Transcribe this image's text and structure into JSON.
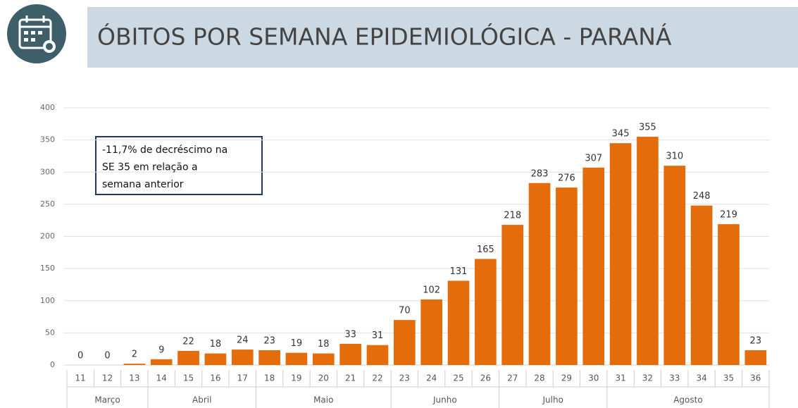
{
  "chart_data": {
    "type": "bar",
    "title": "ÓBITOS POR SEMANA EPIDEMIOLÓGICA - PARANÁ",
    "annotation": [
      "-11,7% de decréscimo na",
      "SE 35 em relação a",
      "semana anterior"
    ],
    "categories": [
      "11",
      "12",
      "13",
      "14",
      "15",
      "16",
      "17",
      "18",
      "19",
      "20",
      "21",
      "22",
      "23",
      "24",
      "25",
      "26",
      "27",
      "28",
      "29",
      "30",
      "31",
      "32",
      "33",
      "34",
      "35",
      "36"
    ],
    "values": [
      0,
      0,
      2,
      9,
      22,
      18,
      24,
      23,
      19,
      18,
      33,
      31,
      70,
      102,
      131,
      165,
      218,
      283,
      276,
      307,
      345,
      355,
      310,
      248,
      219,
      23
    ],
    "month_groups": [
      {
        "label": "Março",
        "from": "11",
        "to": "13"
      },
      {
        "label": "Abril",
        "from": "14",
        "to": "17"
      },
      {
        "label": "Maio",
        "from": "18",
        "to": "22"
      },
      {
        "label": "Junho",
        "from": "23",
        "to": "26"
      },
      {
        "label": "Julho",
        "from": "27",
        "to": "30"
      },
      {
        "label": "Agosto",
        "from": "31",
        "to": "36"
      }
    ],
    "color": "#e46c0a",
    "ylim": [
      0,
      400
    ],
    "yticks": [
      0,
      50,
      100,
      150,
      200,
      250,
      300,
      350,
      400
    ],
    "grid": true
  }
}
